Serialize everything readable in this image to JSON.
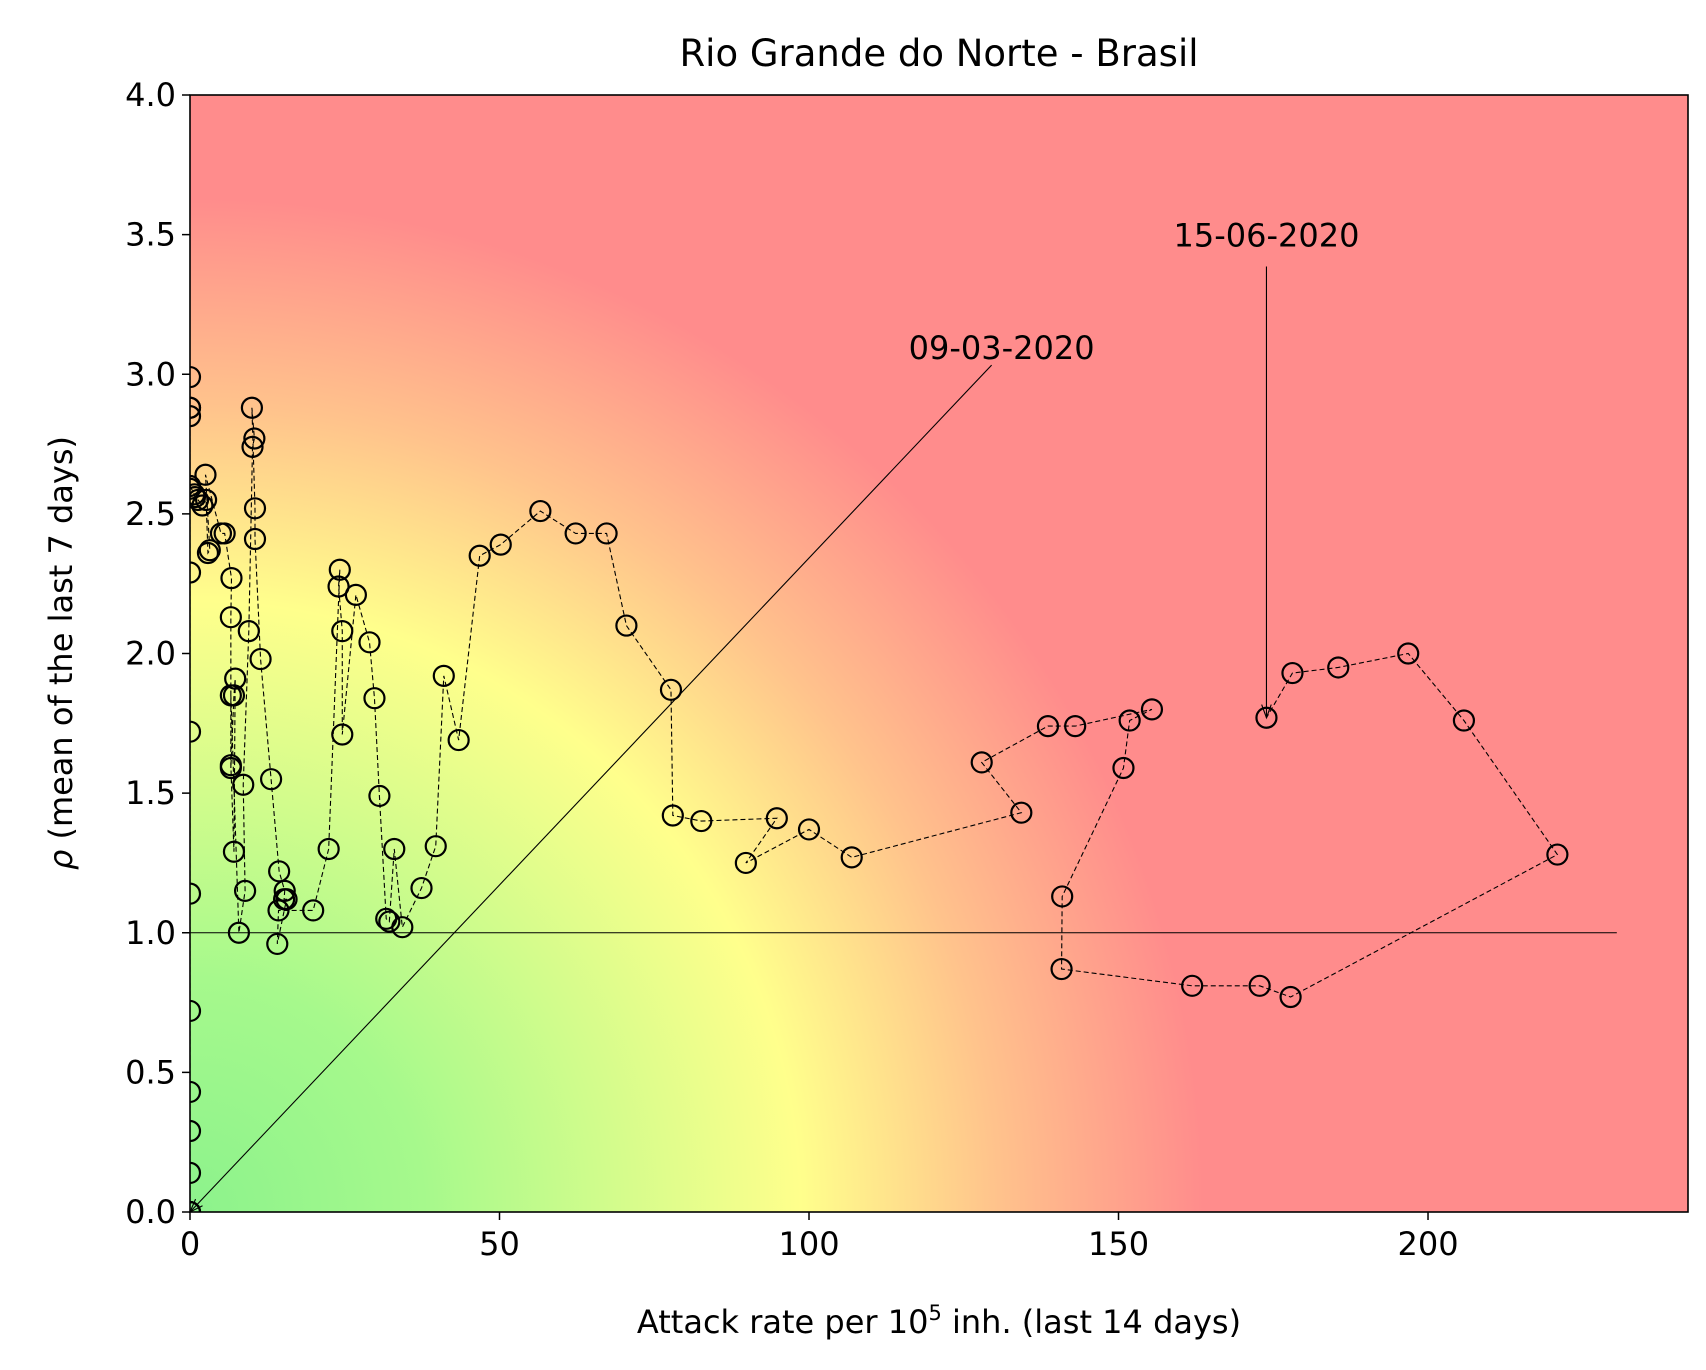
{
  "chart_data": {
    "type": "scatter",
    "title": "Rio Grande do Norte - Brasil",
    "xlabel": {
      "prefix": "Attack rate per 10",
      "sup": "5",
      "suffix": " inh. (last 14 days)"
    },
    "ylabel": {
      "symbol": "ρ",
      "text": " (mean of the last 7 days)"
    },
    "xlim": [
      0,
      242
    ],
    "ylim": [
      0,
      4.0
    ],
    "xticks": [
      0,
      50,
      100,
      150,
      200
    ],
    "xtick_labels": [
      "0",
      "50",
      "100",
      "150",
      "200"
    ],
    "yticks": [
      0,
      0.5,
      1,
      1.5,
      2,
      2.5,
      3,
      3.5,
      4
    ],
    "ytick_labels": [
      "0.0",
      "0.5",
      "1.0",
      "1.5",
      "2.0",
      "2.5",
      "3.0",
      "3.5",
      "4.0"
    ],
    "grid": false,
    "background": "risk gradient: green (low attack rate, low rho) to yellow to red (high attack rate, high rho)",
    "colors": {
      "green": "#8cf28c",
      "yellow": "#ffff8c",
      "orange": "#ffc38c",
      "red": "#ff8c8c",
      "marker": "#000000"
    },
    "reference_lines": [
      {
        "name": "rho = 1",
        "y": 1.0,
        "x_range": [
          0,
          230.5
        ]
      }
    ],
    "annotations": [
      {
        "text": "09-03-2020",
        "point": [
          0,
          0
        ],
        "text_pos": [
          129.5,
          3.04
        ]
      },
      {
        "text": "15-06-2020",
        "point": [
          173.9,
          1.77
        ],
        "text_pos": [
          173.9,
          3.54
        ]
      }
    ],
    "series": [
      {
        "style": "open circles joined by dashed line",
        "x": [
          0,
          0,
          0,
          0,
          0,
          0,
          0,
          0,
          0,
          0,
          0,
          0,
          0,
          0,
          0,
          0,
          0,
          0.7,
          0.8,
          1.3,
          2.0,
          2.6,
          2.9,
          3.2,
          2.5,
          5.0,
          5.6,
          6.7,
          6.6,
          6.6,
          7.1,
          7.3,
          7.1,
          6.6,
          6.6,
          7.9,
          8.9,
          8.6,
          9.5,
          10.1,
          10.4,
          10.0,
          10.5,
          10.5,
          11.4,
          13.1,
          14.4,
          15.3,
          15.2,
          15.6,
          14.1,
          14.3,
          19.9,
          22.4,
          24.2,
          24.0,
          24.6,
          24.6,
          26.8,
          29.0,
          29.8,
          30.6,
          31.7,
          32.2,
          33.0,
          34.3,
          37.4,
          39.7,
          41.0,
          43.4,
          46.8,
          50.2,
          56.6,
          62.3,
          67.3,
          70.5,
          77.7,
          78.0,
          82.6,
          94.8,
          89.8,
          100.0,
          106.9,
          134.3,
          127.9,
          138.6,
          143.0,
          155.4,
          151.8,
          150.8,
          140.9,
          140.8,
          161.9,
          172.8,
          177.8,
          220.9,
          205.8,
          196.8,
          185.5,
          178.1,
          173.9
        ],
        "y": [
          0,
          0,
          0,
          0.14,
          0.29,
          0.43,
          0.72,
          1.14,
          1.72,
          2.29,
          2.59,
          2.85,
          2.88,
          2.99,
          2.88,
          2.6,
          2.6,
          2.57,
          2.56,
          2.55,
          2.53,
          2.55,
          2.36,
          2.37,
          2.64,
          2.43,
          2.43,
          2.27,
          2.13,
          1.6,
          1.29,
          1.91,
          1.85,
          1.59,
          1.85,
          1.0,
          1.15,
          1.53,
          2.08,
          2.74,
          2.77,
          2.88,
          2.52,
          2.41,
          1.98,
          1.55,
          1.22,
          1.15,
          1.12,
          1.12,
          0.96,
          1.08,
          1.08,
          1.3,
          2.3,
          2.24,
          2.08,
          1.71,
          2.21,
          2.04,
          1.84,
          1.49,
          1.05,
          1.04,
          1.3,
          1.02,
          1.16,
          1.31,
          1.92,
          1.69,
          2.35,
          2.39,
          2.51,
          2.43,
          2.43,
          2.1,
          1.87,
          1.42,
          1.4,
          1.41,
          1.25,
          1.37,
          1.27,
          1.43,
          1.61,
          1.74,
          1.74,
          1.8,
          1.76,
          1.59,
          1.13,
          0.87,
          0.81,
          0.81,
          0.77,
          1.28,
          1.76,
          2.0,
          1.95,
          1.93,
          1.77
        ]
      }
    ]
  }
}
